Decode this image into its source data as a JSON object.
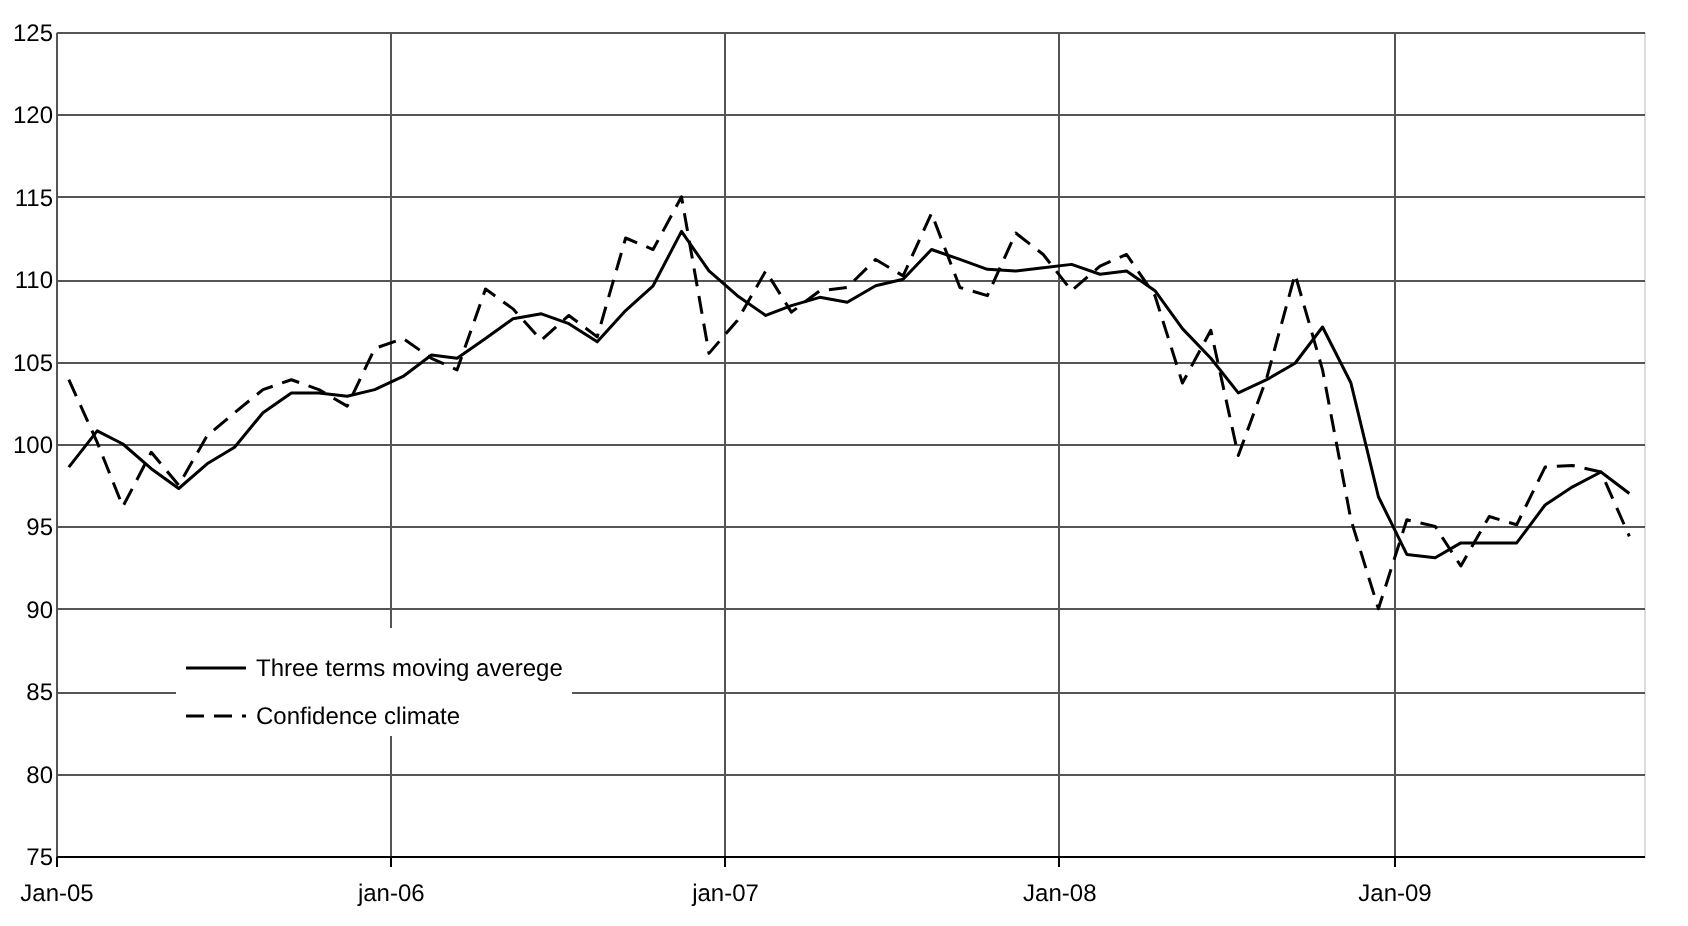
{
  "chart_data": {
    "type": "line",
    "x": [
      "2005-01-15",
      "2005-02-15",
      "2005-03-15",
      "2005-04-15",
      "2005-05-15",
      "2005-06-15",
      "2005-07-15",
      "2005-08-15",
      "2005-09-15",
      "2005-10-15",
      "2005-11-15",
      "2005-12-15",
      "2006-01-15",
      "2006-02-15",
      "2006-03-15",
      "2006-04-15",
      "2006-05-15",
      "2006-06-15",
      "2006-07-15",
      "2006-08-15",
      "2006-09-15",
      "2006-10-15",
      "2006-11-15",
      "2006-12-15",
      "2007-01-15",
      "2007-02-15",
      "2007-03-15",
      "2007-04-15",
      "2007-05-15",
      "2007-06-15",
      "2007-07-15",
      "2007-08-15",
      "2007-09-15",
      "2007-10-15",
      "2007-11-15",
      "2007-12-15",
      "2008-01-15",
      "2008-02-15",
      "2008-03-15",
      "2008-04-15",
      "2008-05-15",
      "2008-06-15",
      "2008-07-15",
      "2008-08-15",
      "2008-09-15",
      "2008-10-15",
      "2008-11-15",
      "2008-12-15",
      "2009-01-15",
      "2009-02-15",
      "2009-03-15",
      "2009-04-15",
      "2009-05-15",
      "2009-06-15",
      "2009-07-15",
      "2009-08-15",
      "2009-09-15"
    ],
    "series": [
      {
        "name": "Three terms moving averege",
        "color": "#000000",
        "line_style": "solid",
        "values": [
          98.6,
          100.8,
          100.0,
          98.5,
          97.3,
          98.8,
          99.8,
          101.9,
          103.1,
          103.1,
          102.9,
          103.3,
          104.1,
          105.4,
          105.2,
          106.4,
          107.6,
          107.9,
          107.3,
          106.2,
          108.1,
          109.6,
          112.9,
          110.5,
          109.0,
          107.8,
          108.4,
          108.9,
          108.6,
          109.6,
          110.0,
          111.8,
          111.2,
          110.6,
          110.5,
          110.7,
          110.9,
          110.3,
          110.5,
          109.3,
          107.0,
          105.2,
          103.1,
          103.9,
          104.9,
          107.1,
          103.7,
          96.8,
          93.3,
          93.1,
          94.0,
          94.0,
          94.0,
          96.3,
          97.4,
          98.3,
          97.0
        ]
      },
      {
        "name": "Confidence climate",
        "color": "#000000",
        "line_style": "dashed",
        "values": [
          103.9,
          100.1,
          96.2,
          99.5,
          97.5,
          100.5,
          101.9,
          103.3,
          103.9,
          103.3,
          102.3,
          105.8,
          106.4,
          105.2,
          104.5,
          109.4,
          108.2,
          106.3,
          107.8,
          106.5,
          112.5,
          111.8,
          115.0,
          105.5,
          107.5,
          110.5,
          108.0,
          109.3,
          109.5,
          111.2,
          110.2,
          114.0,
          109.5,
          109.0,
          112.8,
          111.5,
          109.3,
          110.8,
          111.5,
          109.0,
          103.7,
          106.9,
          99.3,
          104.0,
          110.3,
          104.5,
          95.4,
          90.0,
          95.4,
          95.0,
          92.6,
          95.6,
          95.1,
          98.6,
          98.7,
          98.3,
          94.4
        ]
      }
    ],
    "xlim": [
      "2005-01-01",
      "2009-10-01"
    ],
    "xticks": [
      {
        "value": "2005-01-01",
        "label": "Jan-05"
      },
      {
        "value": "2006-01-01",
        "label": "jan-06"
      },
      {
        "value": "2007-01-01",
        "label": "jan-07"
      },
      {
        "value": "2008-01-01",
        "label": "Jan-08"
      },
      {
        "value": "2009-01-01",
        "label": "Jan-09"
      }
    ],
    "ylim": [
      75,
      125
    ],
    "yticks": [
      75,
      80,
      85,
      90,
      95,
      100,
      105,
      110,
      115,
      120,
      125
    ],
    "grid": true,
    "legend": "bottom left",
    "marker": "none"
  }
}
